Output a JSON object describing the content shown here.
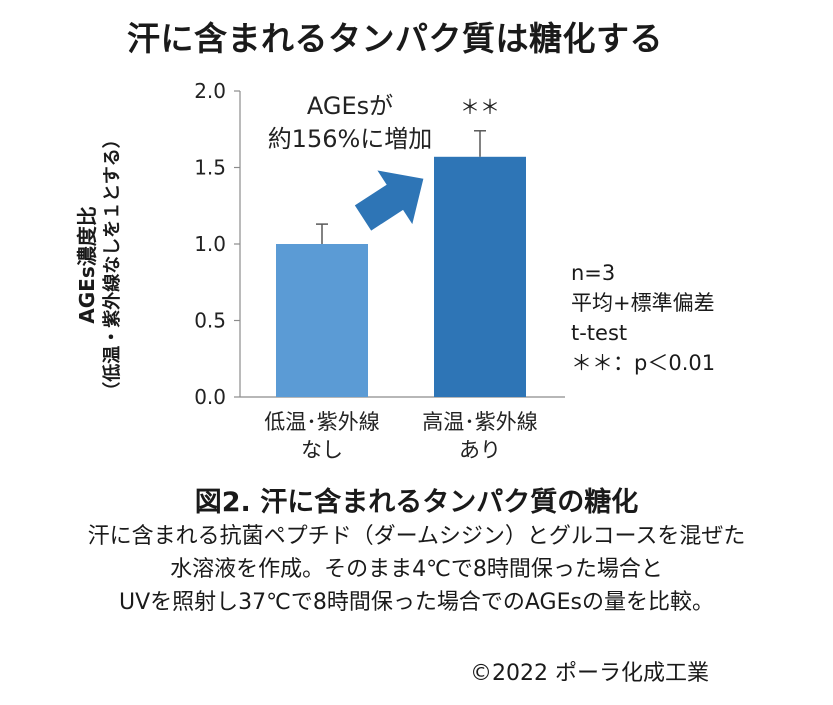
{
  "page": {
    "title": "汗に含まれるタンパク質は糖化する",
    "figure_title": "図2.  汗に含まれるタンパク質の糖化",
    "description_lines": [
      "汗に含まれる抗菌ペプチド（ダームシジン）とグルコースを混ぜた",
      "水溶液を作成。そのまま4℃で8時間保った場合と",
      "UVを照射し37℃で8時間保った場合でのAGEsの量を比較。"
    ],
    "copyright": "©2022 ポーラ化成工業",
    "stats_lines": [
      "n=3",
      "平均+標準偏差",
      "t-test",
      "＊＊：p＜0.01"
    ]
  },
  "chart_data": {
    "type": "bar",
    "title": "汗に含まれるタンパク質は糖化する",
    "ylabel_lines": [
      "AGEs濃度比",
      "（低温・紫外線なしを１とする）"
    ],
    "xlabel": "",
    "ylim": [
      0,
      2.0
    ],
    "yticks": [
      0.0,
      0.5,
      1.0,
      1.5,
      2.0
    ],
    "ytick_labels": [
      "0.0",
      "0.5",
      "1.0",
      "1.5",
      "2.0"
    ],
    "grid": false,
    "categories": [
      [
        "低温･紫外線",
        "なし"
      ],
      [
        "高温･紫外線",
        "あり"
      ]
    ],
    "values": [
      1.0,
      1.57
    ],
    "errors": [
      0.13,
      0.17
    ],
    "colors": [
      "#5b9bd5",
      "#2e75b6"
    ],
    "arrow_color": "#2e75b6",
    "significance_label": "＊＊",
    "annotation_lines": [
      "AGEsが",
      "約156%に増加"
    ]
  }
}
